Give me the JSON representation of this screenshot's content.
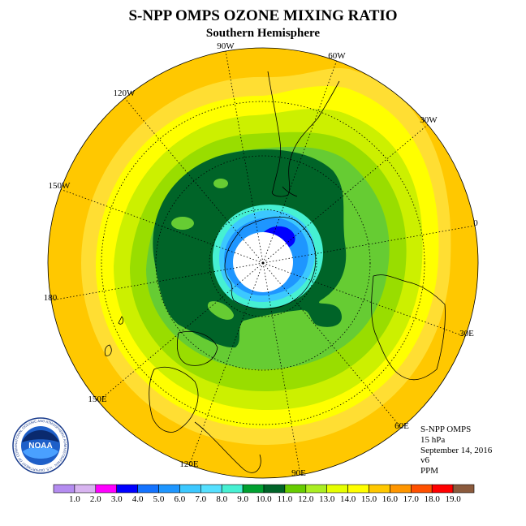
{
  "title": "S-NPP OMPS OZONE MIXING RATIO",
  "subtitle": "Southern Hemisphere",
  "longitude_labels": [
    "0",
    "30E",
    "60E",
    "90E",
    "120E",
    "150E",
    "180",
    "150W",
    "120W",
    "90W",
    "60W",
    "30W"
  ],
  "info": {
    "instrument": "S-NPP OMPS",
    "level": "15 hPa",
    "date": "September 14, 2016",
    "version": "v6",
    "units": "PPM"
  },
  "logo": {
    "text": "NOAA",
    "ring_text": "NATIONAL OCEANIC AND ATMOSPHERIC ADMINISTRATION · U.S. DEPARTMENT OF COMMERCE"
  },
  "colorbar": {
    "ticks": [
      "1.0",
      "2.0",
      "3.0",
      "4.0",
      "5.0",
      "6.0",
      "7.0",
      "8.0",
      "9.0",
      "10.0",
      "11.0",
      "12.0",
      "13.0",
      "14.0",
      "15.0",
      "16.0",
      "17.0",
      "18.0",
      "19.0"
    ],
    "colors": [
      "#b48cf0",
      "#d8b4f0",
      "#ff00ff",
      "#0000ff",
      "#1473ff",
      "#1e96ff",
      "#3cc8ff",
      "#55e0ff",
      "#46f0d2",
      "#00a030",
      "#006428",
      "#66cc00",
      "#aaee22",
      "#e6ff00",
      "#ffff00",
      "#ffc800",
      "#ff9600",
      "#ff5000",
      "#ff0000",
      "#8b5a3c"
    ]
  },
  "map_colors": {
    "gold": "#ffc800",
    "light_orange": "#ffde33",
    "yellow": "#ffff00",
    "yellow_green": "#ccf000",
    "light_green": "#99dd00",
    "green": "#66cc33",
    "dark_green": "#006428",
    "teal": "#46f0d2",
    "cyan": "#3cc8ff",
    "blue": "#1e96ff",
    "dark_blue": "#0000ff",
    "hole": "#ffffff"
  }
}
